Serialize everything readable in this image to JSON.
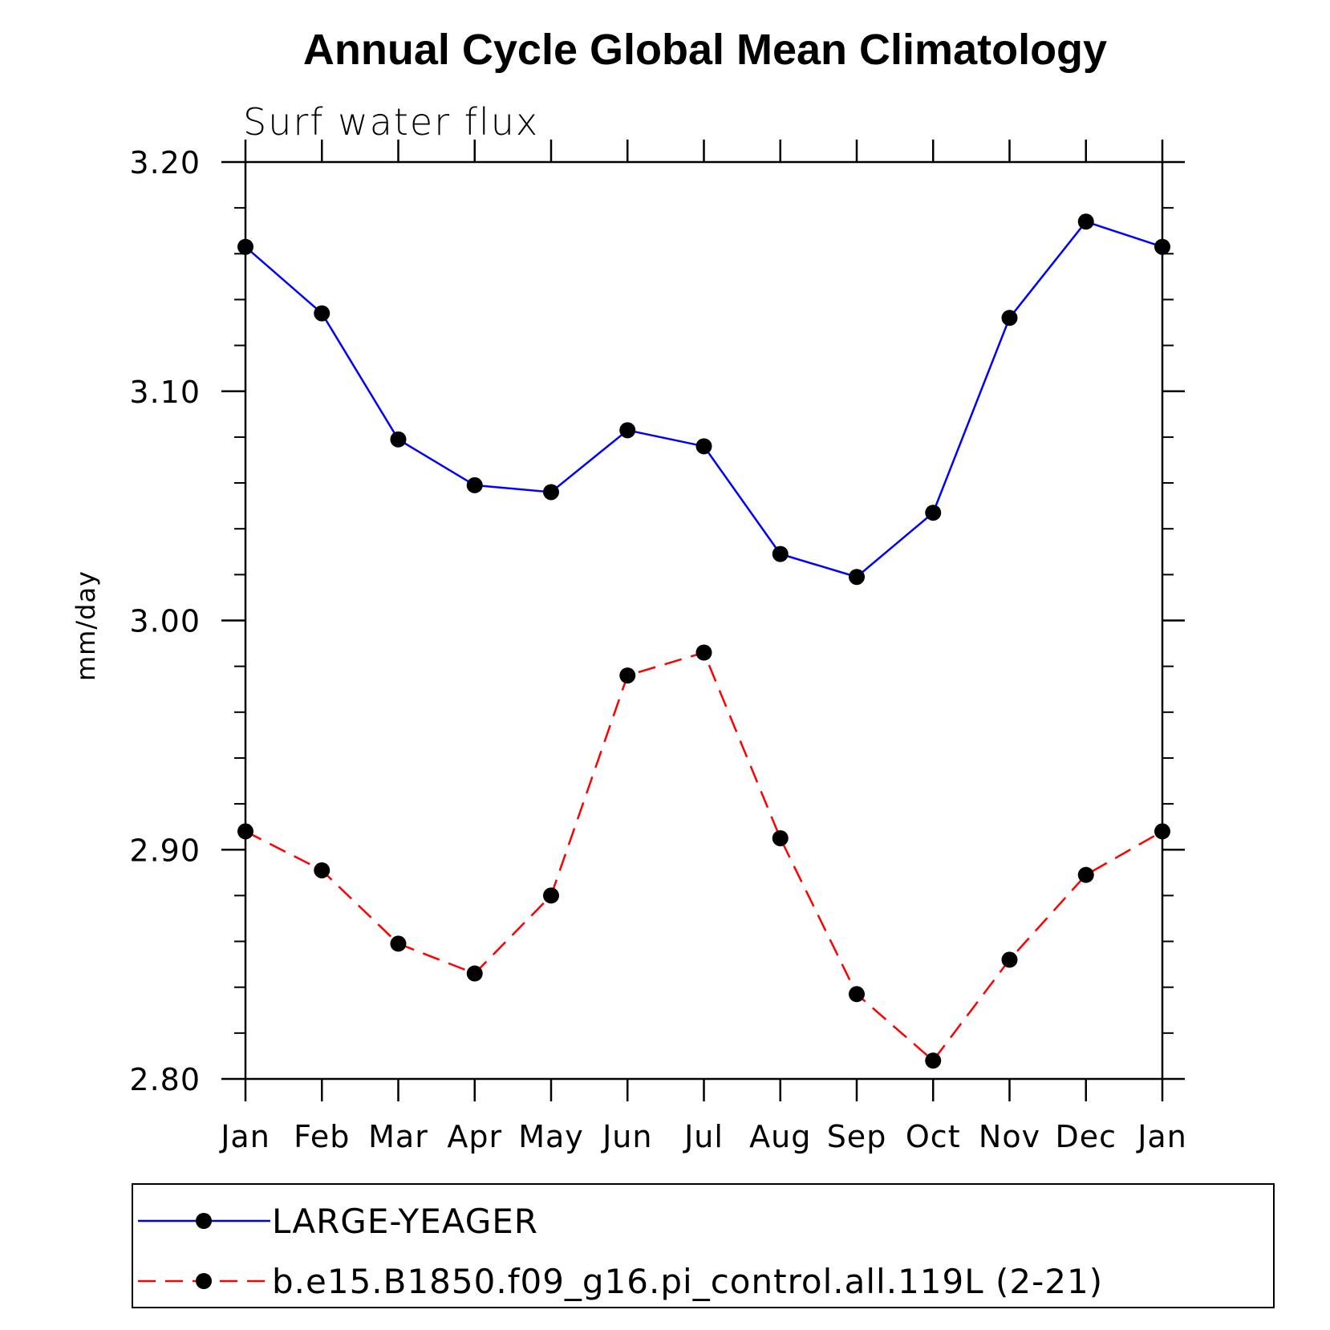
{
  "chart_data": {
    "type": "line",
    "title": "Annual Cycle Global Mean Climatology",
    "subtitle": "Surf water flux",
    "ylabel": "mm/day",
    "xlabel": "",
    "categories": [
      "Jan",
      "Feb",
      "Mar",
      "Apr",
      "May",
      "Jun",
      "Jul",
      "Aug",
      "Sep",
      "Oct",
      "Nov",
      "Dec",
      "Jan"
    ],
    "ylim": [
      2.8,
      3.2
    ],
    "yticks": [
      2.8,
      2.9,
      3.0,
      3.1,
      3.2
    ],
    "ytick_labels": [
      "2.80",
      "2.90",
      "3.00",
      "3.10",
      "3.20"
    ],
    "minor_ytick_step": 0.02,
    "grid": false,
    "legend_position": "bottom",
    "series": [
      {
        "name": "LARGE-YEAGER",
        "color": "#0000ff",
        "dash": "solid",
        "marker": "filled-circle",
        "values": [
          3.163,
          3.134,
          3.079,
          3.059,
          3.056,
          3.083,
          3.076,
          3.029,
          3.019,
          3.047,
          3.132,
          3.174,
          3.163
        ]
      },
      {
        "name": "b.e15.B1850.f09_g16.pi_control.all.119L (2-21)",
        "color": "#ff0000",
        "dash": "dashed",
        "marker": "filled-circle",
        "values": [
          2.908,
          2.891,
          2.859,
          2.846,
          2.88,
          2.976,
          2.986,
          2.905,
          2.837,
          2.808,
          2.852,
          2.889,
          2.908
        ]
      }
    ]
  }
}
